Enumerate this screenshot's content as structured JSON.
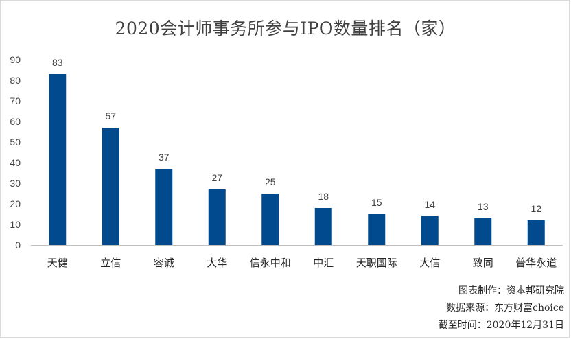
{
  "chart_data": {
    "type": "bar",
    "title": "2020会计师事务所参与IPO数量排名（家）",
    "categories": [
      "天健",
      "立信",
      "容诚",
      "大华",
      "信永中和",
      "中汇",
      "天职国际",
      "大信",
      "致同",
      "普华永道"
    ],
    "series": [
      {
        "values": [
          83,
          57,
          37,
          27,
          25,
          18,
          15,
          14,
          13,
          12
        ]
      }
    ],
    "ylim": [
      0,
      90
    ],
    "yticks": [
      0,
      10,
      20,
      30,
      40,
      50,
      60,
      70,
      80,
      90
    ],
    "xlabel": "",
    "ylabel": "",
    "grid": false,
    "data_labels": true,
    "bar_color": "#014a8d"
  },
  "notes": {
    "line1": "图表制作：资本邦研究院",
    "line2": "数据来源：东方财富choice",
    "line3": "截至时间：2020年12月31日"
  }
}
